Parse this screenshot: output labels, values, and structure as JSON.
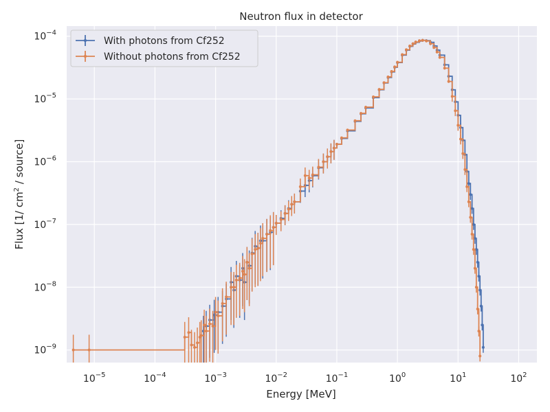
{
  "chart_data": {
    "type": "line",
    "title": "Neutron flux in detector",
    "xlabel": "Energy [MeV]",
    "ylabel_parts": [
      "Flux [1/ cm",
      "2",
      " / source]"
    ],
    "xscale": "log",
    "yscale": "log",
    "xlim": [
      3.5e-06,
      200
    ],
    "ylim": [
      6.3e-10,
      0.000145
    ],
    "grid": true,
    "legend_position": "top-left",
    "x_ticks": [
      {
        "base": "10",
        "exp": "−5",
        "value": 1e-05
      },
      {
        "base": "10",
        "exp": "−4",
        "value": 0.0001
      },
      {
        "base": "10",
        "exp": "−3",
        "value": 0.001
      },
      {
        "base": "10",
        "exp": "−2",
        "value": 0.01
      },
      {
        "base": "10",
        "exp": "−1",
        "value": 0.1
      },
      {
        "base": "10",
        "exp": "0",
        "value": 1
      },
      {
        "base": "10",
        "exp": "1",
        "value": 10
      },
      {
        "base": "10",
        "exp": "2",
        "value": 100
      }
    ],
    "y_ticks": [
      {
        "base": "10",
        "exp": "−9",
        "value": 1e-09
      },
      {
        "base": "10",
        "exp": "−8",
        "value": 1e-08
      },
      {
        "base": "10",
        "exp": "−7",
        "value": 1e-07
      },
      {
        "base": "10",
        "exp": "−6",
        "value": 1e-06
      },
      {
        "base": "10",
        "exp": "−5",
        "value": 1e-05
      },
      {
        "base": "10",
        "exp": "−4",
        "value": 0.0001
      }
    ],
    "series": [
      {
        "name": "With photons from Cf252",
        "color": "#4c72b0",
        "points": [
          [
            0.00063,
            2e-09
          ],
          [
            0.0007,
            2.4e-09
          ],
          [
            0.0008,
            3e-09
          ],
          [
            0.00095,
            3.6e-09
          ],
          [
            0.0011,
            4e-09
          ],
          [
            0.0013,
            5e-09
          ],
          [
            0.0015,
            6.5e-09
          ],
          [
            0.0018,
            1.2e-08
          ],
          [
            0.002,
            9e-09
          ],
          [
            0.0022,
            1.5e-08
          ],
          [
            0.0025,
            1.3e-08
          ],
          [
            0.0028,
            2e-08
          ],
          [
            0.003,
            1.2e-08
          ],
          [
            0.0033,
            2.5e-08
          ],
          [
            0.0036,
            2.2e-08
          ],
          [
            0.004,
            3.5e-08
          ],
          [
            0.0045,
            4.5e-08
          ],
          [
            0.005,
            4.2e-08
          ],
          [
            0.0055,
            5.5e-08
          ],
          [
            0.006,
            5.5e-08
          ],
          [
            0.007,
            7e-08
          ],
          [
            0.008,
            7.5e-08
          ],
          [
            0.009,
            9e-08
          ],
          [
            0.01,
            1.05e-07
          ],
          [
            0.012,
            1.25e-07
          ],
          [
            0.014,
            1.5e-07
          ],
          [
            0.016,
            1.8e-07
          ],
          [
            0.018,
            2.1e-07
          ],
          [
            0.02,
            2.3e-07
          ],
          [
            0.025,
            3.4e-07
          ],
          [
            0.03,
            4.2e-07
          ],
          [
            0.035,
            5e-07
          ],
          [
            0.04,
            6e-07
          ],
          [
            0.05,
            8e-07
          ],
          [
            0.06,
            1e-06
          ],
          [
            0.07,
            1.2e-06
          ],
          [
            0.08,
            1.45e-06
          ],
          [
            0.09,
            1.65e-06
          ],
          [
            0.1,
            1.9e-06
          ],
          [
            0.12,
            2.35e-06
          ],
          [
            0.15,
            3.1e-06
          ],
          [
            0.2,
            4.4e-06
          ],
          [
            0.25,
            5.8e-06
          ],
          [
            0.3,
            7.2e-06
          ],
          [
            0.4,
            1.05e-05
          ],
          [
            0.5,
            1.4e-05
          ],
          [
            0.6,
            1.8e-05
          ],
          [
            0.7,
            2.2e-05
          ],
          [
            0.8,
            2.7e-05
          ],
          [
            0.9,
            3.2e-05
          ],
          [
            1.0,
            3.8e-05
          ],
          [
            1.2,
            5e-05
          ],
          [
            1.4,
            6e-05
          ],
          [
            1.6,
            6.9e-05
          ],
          [
            1.8,
            7.5e-05
          ],
          [
            2.0,
            8e-05
          ],
          [
            2.3,
            8.4e-05
          ],
          [
            2.6,
            8.6e-05
          ],
          [
            3.0,
            8.5e-05
          ],
          [
            3.5,
            8e-05
          ],
          [
            4.0,
            7e-05
          ],
          [
            4.5,
            6e-05
          ],
          [
            5.0,
            5e-05
          ],
          [
            6.0,
            3.5e-05
          ],
          [
            7.0,
            2.3e-05
          ],
          [
            8.0,
            1.4e-05
          ],
          [
            9.0,
            9e-06
          ],
          [
            10.0,
            5.5e-06
          ],
          [
            11.0,
            3.5e-06
          ],
          [
            12.0,
            2.2e-06
          ],
          [
            13.0,
            1.3e-06
          ],
          [
            14.0,
            7e-07
          ],
          [
            15.0,
            4.5e-07
          ],
          [
            16.0,
            3e-07
          ],
          [
            17.0,
            1.8e-07
          ],
          [
            18.0,
            1e-07
          ],
          [
            19.0,
            6e-08
          ],
          [
            20.0,
            4e-08
          ],
          [
            21.0,
            2.5e-08
          ],
          [
            22.0,
            1.5e-08
          ],
          [
            23.0,
            9e-09
          ],
          [
            24.0,
            5e-09
          ],
          [
            25.0,
            2.5e-09
          ],
          [
            26.0,
            1.1e-09
          ]
        ]
      },
      {
        "name": "Without photons from Cf252",
        "color": "#dd8452",
        "points": [
          [
            4.5e-06,
            1e-09
          ],
          [
            8.2e-06,
            1e-09
          ],
          [
            0.00031,
            1.6e-09
          ],
          [
            0.00036,
            1.9e-09
          ],
          [
            0.0004,
            1.2e-09
          ],
          [
            0.00045,
            1.1e-09
          ],
          [
            0.0005,
            1.3e-09
          ],
          [
            0.00055,
            1.6e-09
          ],
          [
            0.00058,
            1.7e-09
          ],
          [
            0.00065,
            2.5e-09
          ],
          [
            0.0007,
            2e-09
          ],
          [
            0.0008,
            2.6e-09
          ],
          [
            0.0009,
            2.4e-09
          ],
          [
            0.001,
            4e-09
          ],
          [
            0.0011,
            3.5e-09
          ],
          [
            0.0013,
            5.5e-09
          ],
          [
            0.0015,
            7e-09
          ],
          [
            0.0018,
            1e-08
          ],
          [
            0.002,
            1e-08
          ],
          [
            0.0022,
            1.3e-08
          ],
          [
            0.0025,
            1.4e-08
          ],
          [
            0.0028,
            1.8e-08
          ],
          [
            0.003,
            1.6e-08
          ],
          [
            0.0033,
            2.5e-08
          ],
          [
            0.0036,
            2e-08
          ],
          [
            0.004,
            3.4e-08
          ],
          [
            0.0045,
            4e-08
          ],
          [
            0.005,
            4.2e-08
          ],
          [
            0.0055,
            5e-08
          ],
          [
            0.006,
            6e-08
          ],
          [
            0.007,
            7e-08
          ],
          [
            0.008,
            8e-08
          ],
          [
            0.009,
            9e-08
          ],
          [
            0.01,
            1.05e-07
          ],
          [
            0.012,
            1.2e-07
          ],
          [
            0.014,
            1.5e-07
          ],
          [
            0.016,
            1.75e-07
          ],
          [
            0.018,
            2.1e-07
          ],
          [
            0.02,
            2.3e-07
          ],
          [
            0.025,
            4e-07
          ],
          [
            0.03,
            6e-07
          ],
          [
            0.035,
            5.5e-07
          ],
          [
            0.04,
            6.2e-07
          ],
          [
            0.05,
            8.2e-07
          ],
          [
            0.06,
            1e-06
          ],
          [
            0.07,
            1.2e-06
          ],
          [
            0.08,
            1.45e-06
          ],
          [
            0.09,
            1.65e-06
          ],
          [
            0.1,
            1.9e-06
          ],
          [
            0.12,
            2.4e-06
          ],
          [
            0.15,
            3.2e-06
          ],
          [
            0.2,
            4.5e-06
          ],
          [
            0.25,
            5.9e-06
          ],
          [
            0.3,
            7.4e-06
          ],
          [
            0.4,
            1.08e-05
          ],
          [
            0.5,
            1.42e-05
          ],
          [
            0.6,
            1.82e-05
          ],
          [
            0.7,
            2.25e-05
          ],
          [
            0.8,
            2.75e-05
          ],
          [
            0.9,
            3.25e-05
          ],
          [
            1.0,
            3.85e-05
          ],
          [
            1.2,
            5.1e-05
          ],
          [
            1.4,
            6.1e-05
          ],
          [
            1.6,
            7e-05
          ],
          [
            1.8,
            7.6e-05
          ],
          [
            2.0,
            8.1e-05
          ],
          [
            2.3,
            8.5e-05
          ],
          [
            2.6,
            8.6e-05
          ],
          [
            3.0,
            8.4e-05
          ],
          [
            3.5,
            7.6e-05
          ],
          [
            4.0,
            6.6e-05
          ],
          [
            4.5,
            5.6e-05
          ],
          [
            5.0,
            4.6e-05
          ],
          [
            6.0,
            3.1e-05
          ],
          [
            7.0,
            1.9e-05
          ],
          [
            8.0,
            1.1e-05
          ],
          [
            9.0,
            6.5e-06
          ],
          [
            10.0,
            3.8e-06
          ],
          [
            11.0,
            2.3e-06
          ],
          [
            12.0,
            1.35e-06
          ],
          [
            13.0,
            7.5e-07
          ],
          [
            14.0,
            4e-07
          ],
          [
            15.0,
            2.3e-07
          ],
          [
            16.0,
            1.3e-07
          ],
          [
            17.0,
            7e-08
          ],
          [
            18.0,
            4e-08
          ],
          [
            19.0,
            2e-08
          ],
          [
            20.0,
            1e-08
          ],
          [
            21.0,
            4.5e-09
          ],
          [
            22.0,
            2e-09
          ],
          [
            23.0,
            8e-10
          ]
        ]
      }
    ]
  }
}
